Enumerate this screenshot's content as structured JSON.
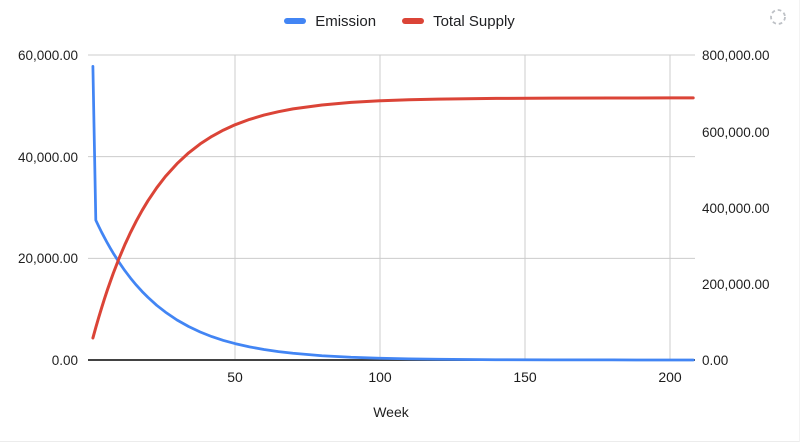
{
  "chart_data": {
    "type": "line",
    "title": "",
    "x_label": "Week",
    "legend_position": "top",
    "grid": true,
    "x_range": [
      0,
      209
    ],
    "x_ticks": [
      50,
      100,
      150,
      200
    ],
    "x_tick_labels": [
      "50",
      "100",
      "150",
      "200"
    ],
    "left_axis": {
      "min": 0,
      "max": 60000,
      "tick_values": [
        0,
        20000,
        40000,
        60000
      ],
      "tick_labels": [
        "0.00",
        "20,000.00",
        "40,000.00",
        "60,000.00"
      ],
      "series": "Emission"
    },
    "right_axis": {
      "min": 0,
      "max": 800000,
      "tick_values": [
        0,
        200000,
        400000,
        600000,
        800000
      ],
      "tick_labels": [
        "0.00",
        "200,000.00",
        "400,000.00",
        "600,000.00",
        "800,000.00"
      ],
      "series": "Total Supply"
    },
    "weeks": [
      1,
      2,
      3,
      4,
      5,
      6,
      7,
      8,
      10,
      12,
      14,
      16,
      18,
      20,
      23,
      26,
      30,
      34,
      38,
      42,
      46,
      50,
      55,
      60,
      65,
      70,
      80,
      90,
      100,
      110,
      120,
      140,
      160,
      180,
      200,
      208
    ],
    "series": [
      {
        "name": "Emission",
        "axis": "left",
        "color": "#4285f4",
        "stroke_width": 2.75,
        "values": [
          57750,
          27500,
          26299,
          25150,
          24052,
          23002,
          21997,
          21036,
          19239,
          17595,
          16092,
          14717,
          13460,
          12309,
          10766,
          9416,
          7876,
          6587,
          5510,
          4608,
          3854,
          3224,
          2580,
          2063,
          1651,
          1320,
          845,
          540,
          345,
          221,
          141,
          58,
          24,
          10,
          4,
          3
        ]
      },
      {
        "name": "Total Supply",
        "axis": "right",
        "color": "#db4437",
        "stroke_width": 3,
        "values": [
          57750,
          85250,
          111549,
          136699,
          160752,
          183754,
          205750,
          226785,
          266113,
          302081,
          334980,
          365070,
          392592,
          417763,
          451657,
          481244,
          514972,
          543193,
          566794,
          586533,
          603044,
          616852,
          630959,
          642260,
          651300,
          658532,
          668950,
          675615,
          679878,
          682604,
          684348,
          686177,
          686925,
          687231,
          687356,
          687380
        ]
      }
    ],
    "gridline_color": "#cccccc",
    "axis_line_color": "#424242"
  },
  "icons": {
    "top_right": "dashed-circle-options-icon"
  }
}
